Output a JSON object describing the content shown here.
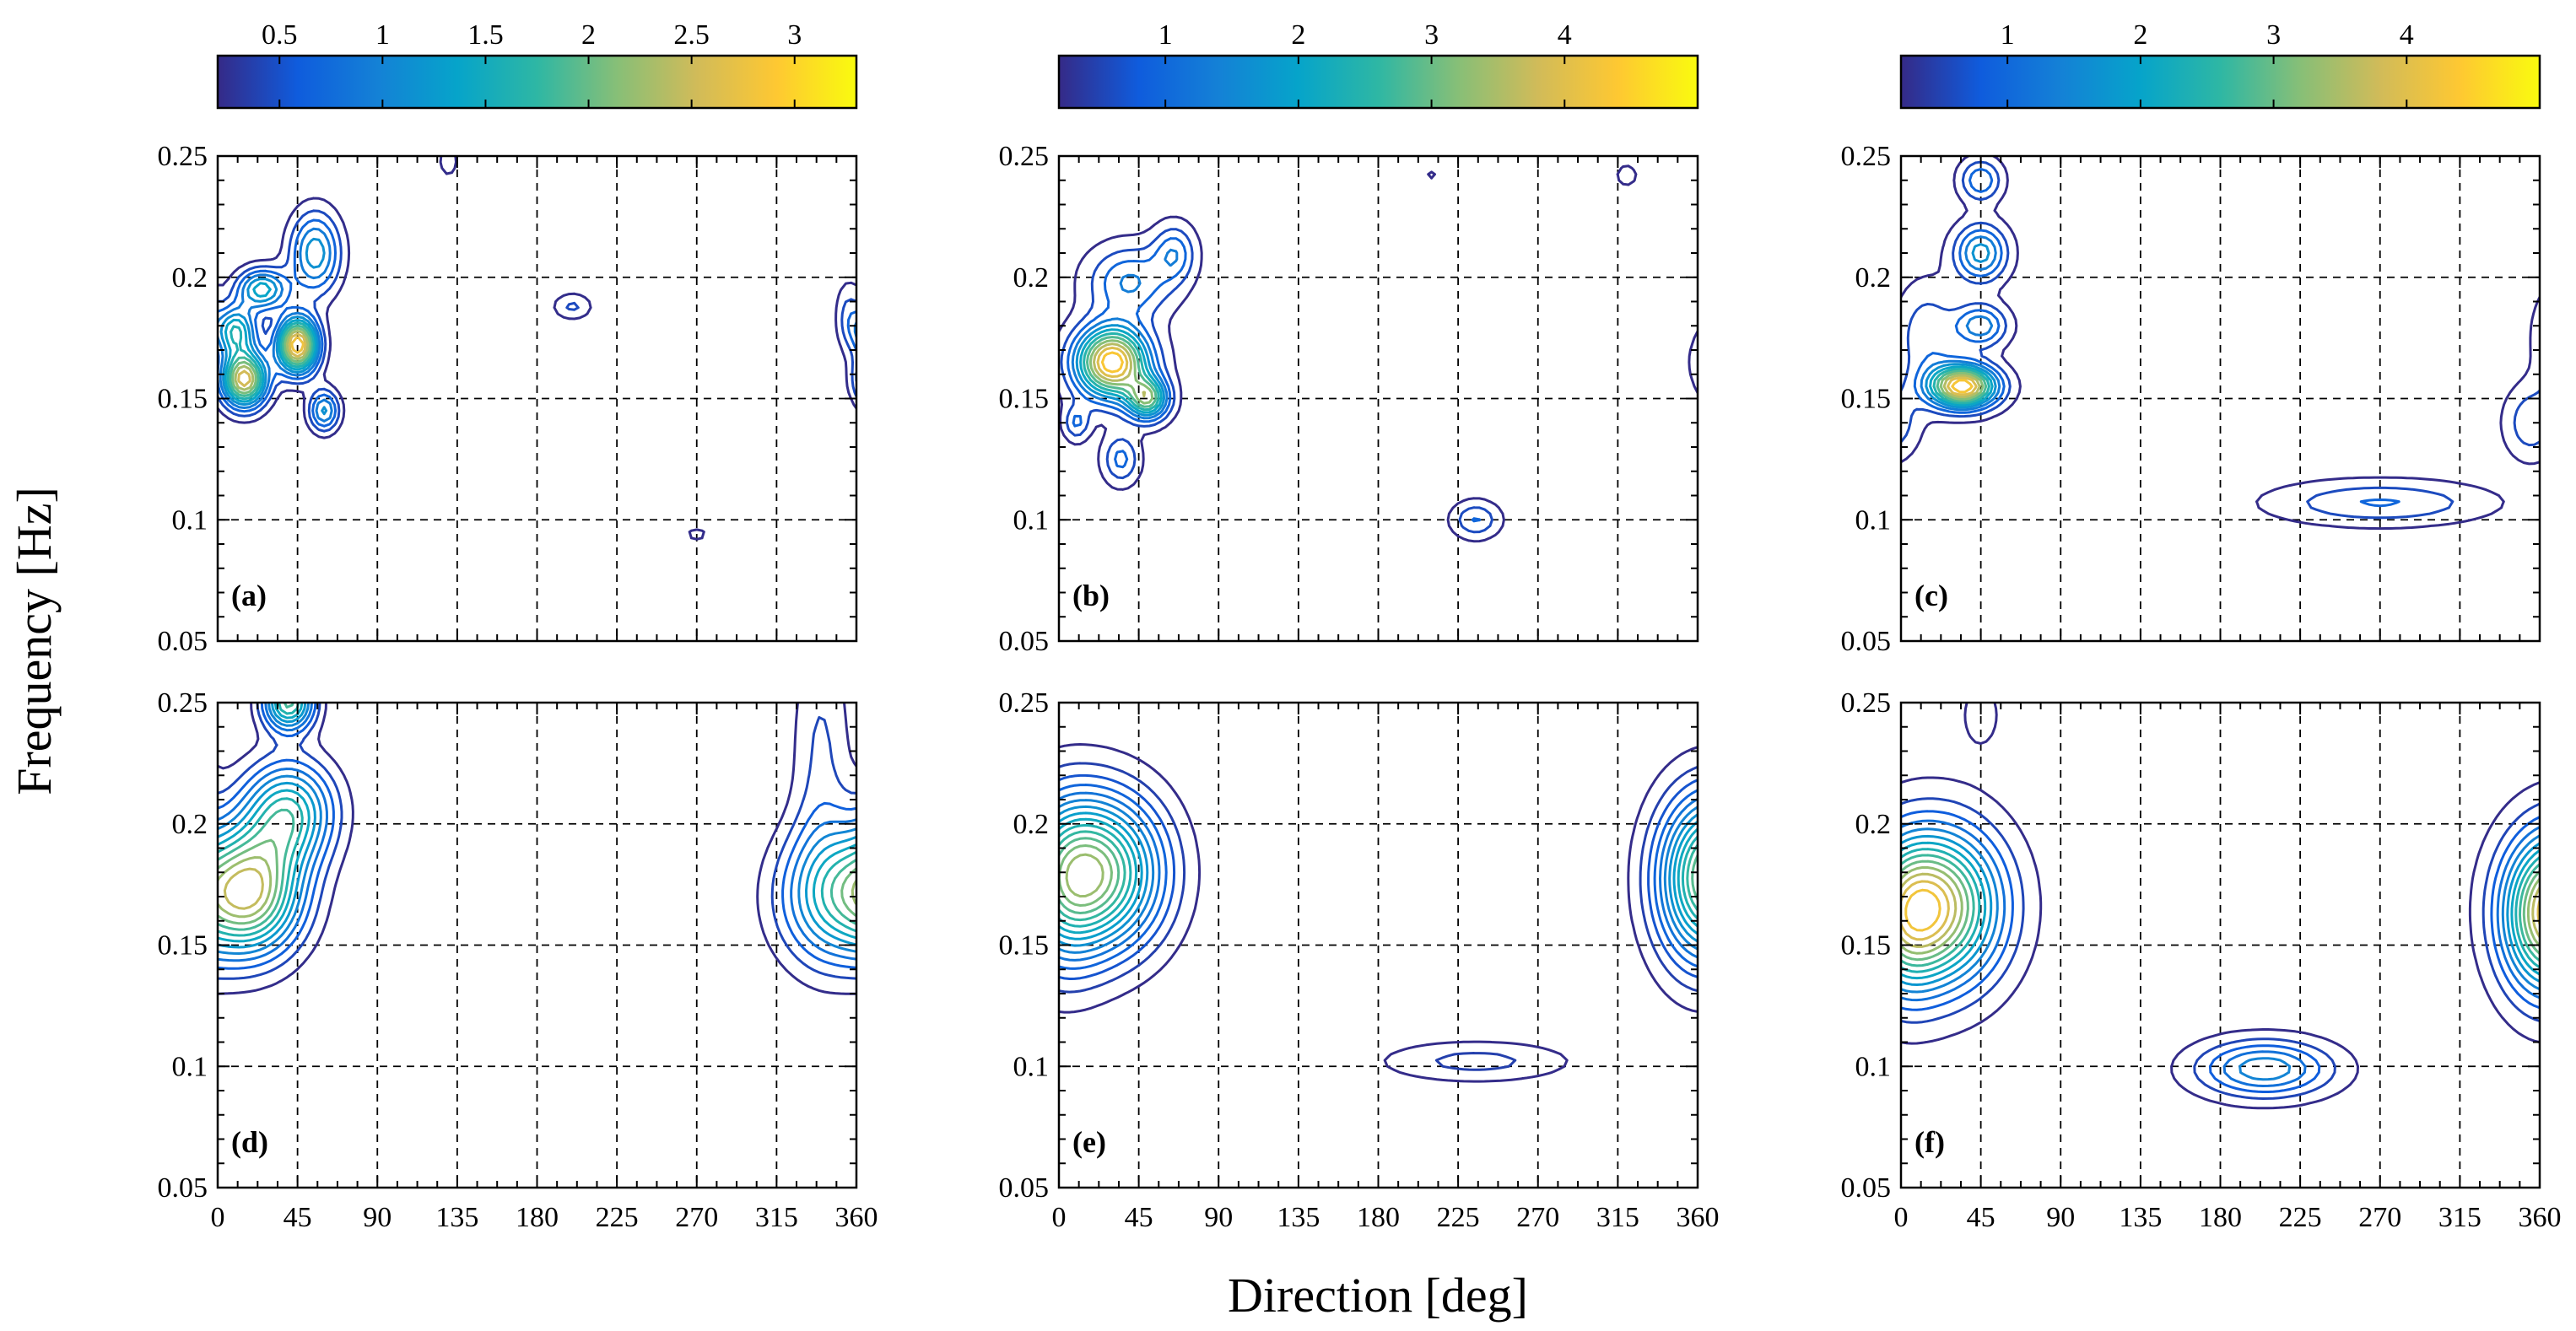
{
  "chart_data": {
    "type": "contour",
    "xlabel": "Direction [deg]",
    "ylabel": "Frequency [Hz]",
    "xlim": [
      0,
      360
    ],
    "ylim": [
      0.05,
      0.25
    ],
    "xticks": [
      0,
      45,
      90,
      135,
      180,
      225,
      270,
      315,
      360
    ],
    "yticks": [
      0.05,
      0.1,
      0.15,
      0.2,
      0.25
    ],
    "ytick_labels": [
      "0.05",
      "0.1",
      "0.15",
      "0.2",
      "0.25"
    ],
    "grid": "dashed",
    "colormap_stops": [
      "#352a87",
      "#0f5cdd",
      "#1481d6",
      "#06a4ca",
      "#2eb7a4",
      "#87bf77",
      "#d1bb59",
      "#fec832",
      "#f9fb0e"
    ],
    "colorbars": [
      {
        "column": 1,
        "range": [
          0.2,
          3.3
        ],
        "ticks": [
          0.5,
          1,
          1.5,
          2,
          2.5,
          3
        ],
        "tick_labels": [
          "0.5",
          "1",
          "1.5",
          "2",
          "2.5",
          "3"
        ]
      },
      {
        "column": 2,
        "range": [
          0.2,
          5.0
        ],
        "ticks": [
          1,
          2,
          3,
          4
        ],
        "tick_labels": [
          "1",
          "2",
          "3",
          "4"
        ]
      },
      {
        "column": 3,
        "range": [
          0.2,
          5.0
        ],
        "ticks": [
          1,
          2,
          3,
          4
        ],
        "tick_labels": [
          "1",
          "2",
          "3",
          "4"
        ]
      }
    ],
    "panels": [
      {
        "label": "(a)",
        "row": 1,
        "col": 1,
        "levels": 12,
        "peaks": [
          {
            "dir": 15,
            "freq": 0.158,
            "sd": 9,
            "sf": 0.008,
            "amp": 2.7
          },
          {
            "dir": 45,
            "freq": 0.172,
            "sd": 8,
            "sf": 0.008,
            "amp": 3.0
          },
          {
            "dir": 10,
            "freq": 0.178,
            "sd": 8,
            "sf": 0.007,
            "amp": 1.6
          },
          {
            "dir": 25,
            "freq": 0.195,
            "sd": 10,
            "sf": 0.006,
            "amp": 1.5
          },
          {
            "dir": 55,
            "freq": 0.21,
            "sd": 10,
            "sf": 0.012,
            "amp": 1.3
          },
          {
            "dir": 60,
            "freq": 0.145,
            "sd": 6,
            "sf": 0.006,
            "amp": 1.2
          },
          {
            "dir": 200,
            "freq": 0.188,
            "sd": 8,
            "sf": 0.004,
            "amp": 0.5
          },
          {
            "dir": 130,
            "freq": 0.248,
            "sd": 4,
            "sf": 0.005,
            "amp": 0.4
          },
          {
            "dir": 355,
            "freq": 0.185,
            "sd": 5,
            "sf": 0.01,
            "amp": 0.45
          },
          {
            "dir": 270,
            "freq": 0.094,
            "sd": 5,
            "sf": 0.002,
            "amp": 0.35
          }
        ]
      },
      {
        "label": "(b)",
        "row": 1,
        "col": 2,
        "levels": 12,
        "peaks": [
          {
            "dir": 30,
            "freq": 0.165,
            "sd": 14,
            "sf": 0.01,
            "amp": 4.7
          },
          {
            "dir": 50,
            "freq": 0.15,
            "sd": 8,
            "sf": 0.006,
            "amp": 3.0
          },
          {
            "dir": 40,
            "freq": 0.198,
            "sd": 16,
            "sf": 0.01,
            "amp": 1.4
          },
          {
            "dir": 65,
            "freq": 0.21,
            "sd": 8,
            "sf": 0.008,
            "amp": 1.2
          },
          {
            "dir": 35,
            "freq": 0.125,
            "sd": 7,
            "sf": 0.007,
            "amp": 1.1
          },
          {
            "dir": 10,
            "freq": 0.14,
            "sd": 5,
            "sf": 0.005,
            "amp": 1.0
          },
          {
            "dir": 235,
            "freq": 0.1,
            "sd": 9,
            "sf": 0.005,
            "amp": 1.0
          },
          {
            "dir": 320,
            "freq": 0.242,
            "sd": 4,
            "sf": 0.003,
            "amp": 0.5
          },
          {
            "dir": 210,
            "freq": 0.242,
            "sd": 3,
            "sf": 0.002,
            "amp": 0.3
          }
        ]
      },
      {
        "label": "(c)",
        "row": 1,
        "col": 3,
        "levels": 12,
        "peaks": [
          {
            "dir": 35,
            "freq": 0.155,
            "sd": 13,
            "sf": 0.006,
            "amp": 4.6
          },
          {
            "dir": 45,
            "freq": 0.21,
            "sd": 10,
            "sf": 0.008,
            "amp": 1.9
          },
          {
            "dir": 45,
            "freq": 0.18,
            "sd": 10,
            "sf": 0.006,
            "amp": 1.6
          },
          {
            "dir": 45,
            "freq": 0.24,
            "sd": 8,
            "sf": 0.006,
            "amp": 1.3
          },
          {
            "dir": 15,
            "freq": 0.175,
            "sd": 12,
            "sf": 0.015,
            "amp": 0.9
          },
          {
            "dir": 270,
            "freq": 0.107,
            "sd": 40,
            "sf": 0.006,
            "amp": 1.0
          },
          {
            "dir": 355,
            "freq": 0.14,
            "sd": 10,
            "sf": 0.01,
            "amp": 0.9
          }
        ]
      },
      {
        "label": "(d)",
        "row": 2,
        "col": 1,
        "levels": 12,
        "peaks": [
          {
            "dir": 20,
            "freq": 0.172,
            "sd": 20,
            "sf": 0.018,
            "amp": 2.2
          },
          {
            "dir": 40,
            "freq": 0.205,
            "sd": 18,
            "sf": 0.015,
            "amp": 1.6
          },
          {
            "dir": 40,
            "freq": 0.25,
            "sd": 10,
            "sf": 0.008,
            "amp": 1.9
          },
          {
            "dir": 345,
            "freq": 0.17,
            "sd": 22,
            "sf": 0.02,
            "amp": 1.2
          },
          {
            "dir": 340,
            "freq": 0.23,
            "sd": 12,
            "sf": 0.04,
            "amp": 0.45
          }
        ]
      },
      {
        "label": "(e)",
        "row": 2,
        "col": 2,
        "levels": 14,
        "peaks": [
          {
            "dir": 25,
            "freq": 0.18,
            "sd": 24,
            "sf": 0.022,
            "amp": 2.8
          },
          {
            "dir": 360,
            "freq": 0.175,
            "sd": 18,
            "sf": 0.025,
            "amp": 1.5
          },
          {
            "dir": 235,
            "freq": 0.102,
            "sd": 38,
            "sf": 0.006,
            "amp": 0.55
          }
        ]
      },
      {
        "label": "(f)",
        "row": 2,
        "col": 3,
        "levels": 14,
        "peaks": [
          {
            "dir": 22,
            "freq": 0.166,
            "sd": 24,
            "sf": 0.022,
            "amp": 3.6
          },
          {
            "dir": 360,
            "freq": 0.16,
            "sd": 16,
            "sf": 0.022,
            "amp": 1.7
          },
          {
            "dir": 205,
            "freq": 0.099,
            "sd": 26,
            "sf": 0.008,
            "amp": 1.7
          },
          {
            "dir": 45,
            "freq": 0.245,
            "sd": 8,
            "sf": 0.01,
            "amp": 0.4
          }
        ]
      }
    ]
  }
}
